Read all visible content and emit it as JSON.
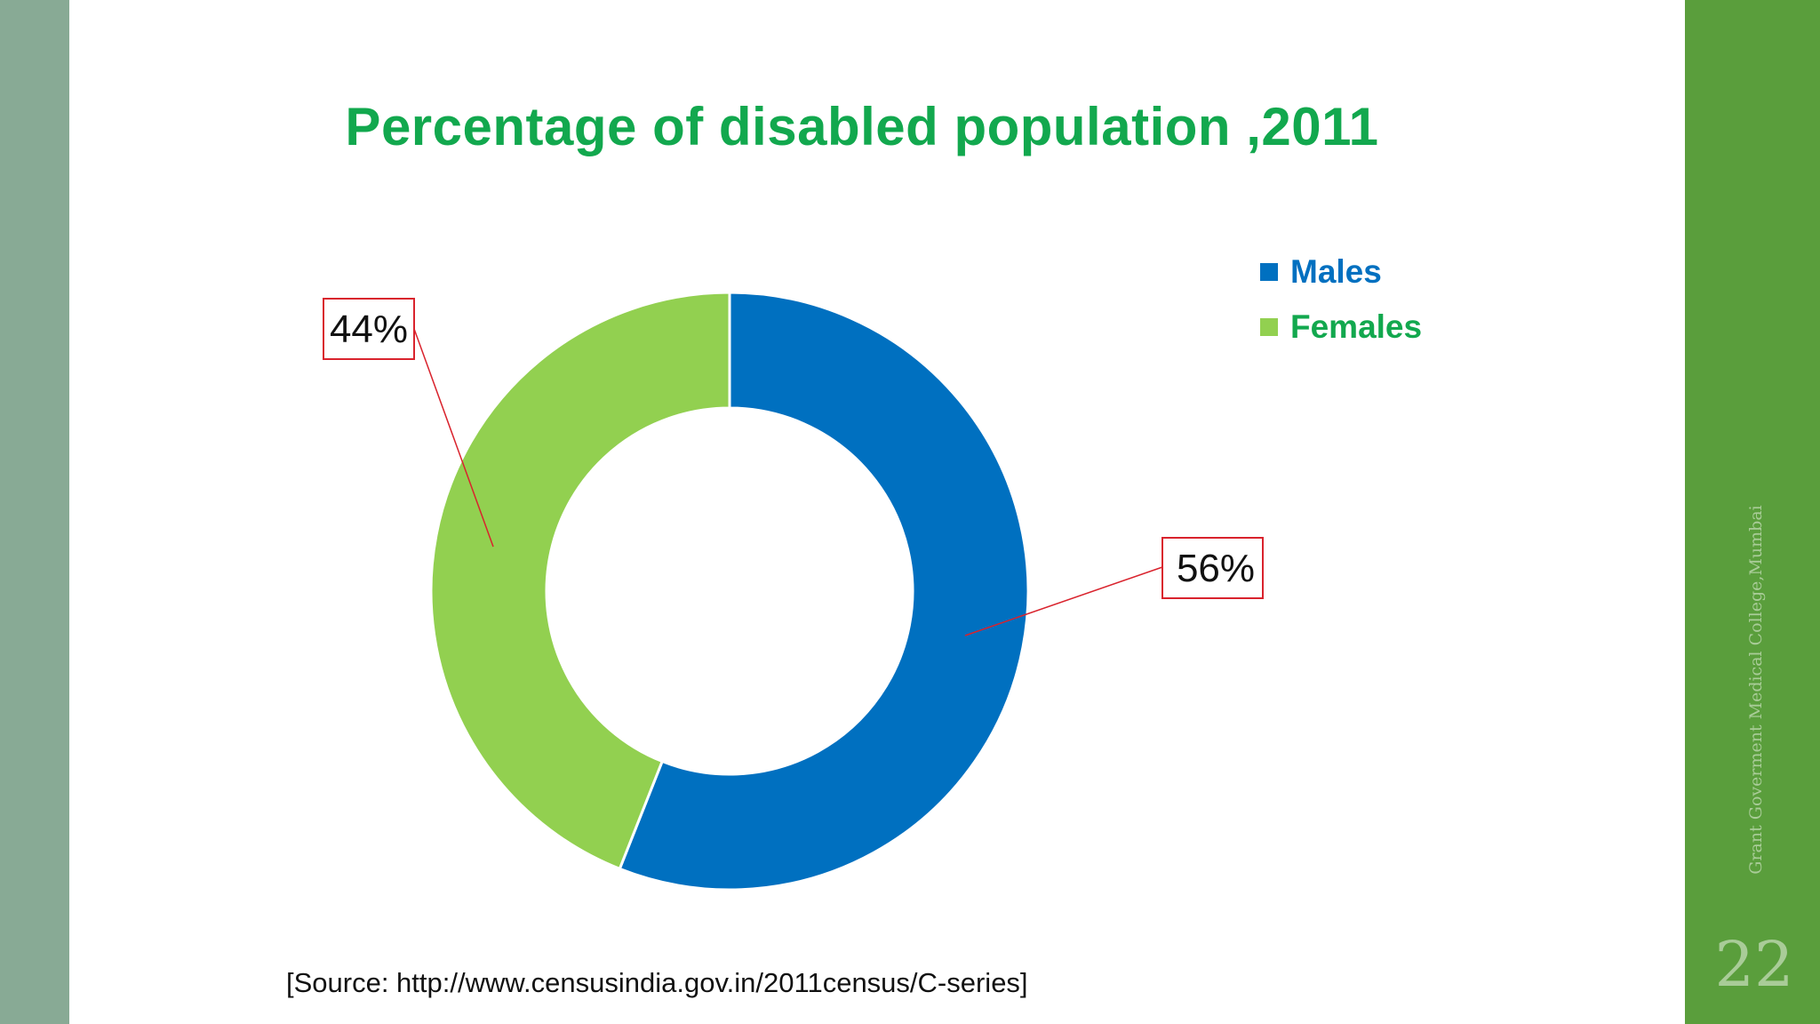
{
  "slide": {
    "side_caption": "Grant Goverment Medical College,Mumbai",
    "slide_number": "22",
    "source": "[Source: http://www.censusindia.gov.in/2011census/C-series]"
  },
  "chart_data": {
    "type": "pie",
    "subtype": "donut",
    "title": "Percentage of disabled population ,2011",
    "categories": [
      "Males",
      "Females"
    ],
    "values": [
      56,
      44
    ],
    "data_labels": [
      "56%",
      "44%"
    ],
    "colors": [
      "#0070c0",
      "#92d050"
    ],
    "legend_colors": [
      "#0070c0",
      "#12a84e"
    ],
    "legend_position": "top-right"
  }
}
